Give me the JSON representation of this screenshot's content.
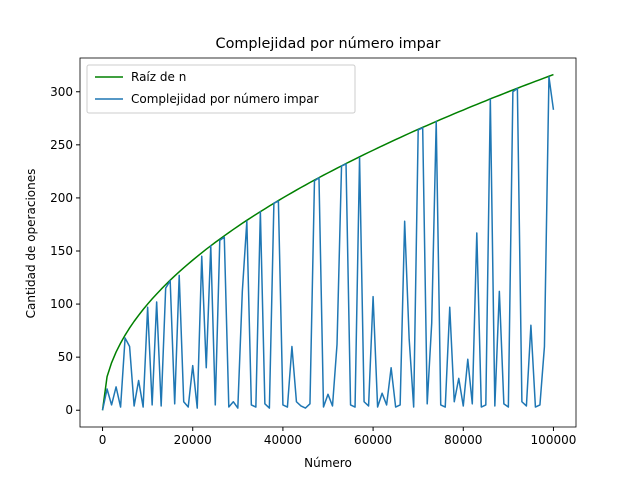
{
  "chart_data": {
    "type": "line",
    "title": "Complejidad por número impar",
    "x_label": "Número",
    "y_label": "Cantidad de operaciones",
    "x": [
      0,
      1000,
      2000,
      3000,
      4000,
      5000,
      6000,
      7000,
      8000,
      9000,
      10000,
      11000,
      12000,
      13000,
      14000,
      15000,
      16000,
      17000,
      18000,
      19000,
      20000,
      21000,
      22000,
      23000,
      24000,
      25000,
      26000,
      27000,
      28000,
      29000,
      30000,
      31000,
      32000,
      33000,
      34000,
      35000,
      36000,
      37000,
      38000,
      39000,
      40000,
      41000,
      42000,
      43000,
      44000,
      45000,
      46000,
      47000,
      48000,
      49000,
      50000,
      51000,
      52000,
      53000,
      54000,
      55000,
      56000,
      57000,
      58000,
      59000,
      60000,
      61000,
      62000,
      63000,
      64000,
      65000,
      66000,
      67000,
      68000,
      69000,
      70000,
      71000,
      72000,
      73000,
      74000,
      75000,
      76000,
      77000,
      78000,
      79000,
      80000,
      81000,
      82000,
      83000,
      84000,
      85000,
      86000,
      87000,
      88000,
      89000,
      90000,
      91000,
      92000,
      93000,
      94000,
      95000,
      96000,
      97000,
      98000,
      99000,
      100000
    ],
    "series": [
      {
        "name": "Raíz de n",
        "color": "#008000",
        "values": [
          0,
          31.6,
          44.7,
          54.8,
          63.2,
          70.7,
          77.5,
          83.7,
          89.4,
          94.9,
          100,
          104.9,
          109.5,
          114.0,
          118.3,
          122.5,
          126.5,
          130.4,
          134.2,
          137.8,
          141.4,
          144.9,
          148.3,
          151.7,
          154.9,
          158.1,
          161.2,
          164.3,
          167.3,
          170.3,
          173.2,
          176.1,
          178.9,
          181.7,
          184.4,
          187.1,
          189.7,
          192.4,
          194.9,
          197.5,
          200,
          202.5,
          204.9,
          207.4,
          209.8,
          212.1,
          214.5,
          216.8,
          219.1,
          221.4,
          223.6,
          225.8,
          228.0,
          230.2,
          232.4,
          234.5,
          236.6,
          238.7,
          240.8,
          242.9,
          244.9,
          247.0,
          249.0,
          251.0,
          253.0,
          255.0,
          256.9,
          258.8,
          260.8,
          262.7,
          264.6,
          266.5,
          268.3,
          270.2,
          272.0,
          273.9,
          275.7,
          277.5,
          279.3,
          281.1,
          282.8,
          284.6,
          286.4,
          288.1,
          289.8,
          291.5,
          293.3,
          295.0,
          296.6,
          298.3,
          300,
          301.7,
          303.3,
          305.0,
          306.6,
          308.2,
          309.8,
          311.4,
          313.0,
          314.6,
          316.2
        ]
      },
      {
        "name": "Complejidad por número impar",
        "color": "#1f77b4",
        "values": [
          0,
          20,
          5,
          22,
          3,
          68,
          60,
          4,
          28,
          3,
          97,
          5,
          102,
          4,
          115,
          122,
          6,
          127,
          8,
          3,
          42,
          2,
          145,
          40,
          155,
          5,
          160,
          163,
          3,
          8,
          2,
          112,
          178,
          5,
          3,
          187,
          6,
          2,
          195,
          197,
          5,
          3,
          60,
          8,
          4,
          2,
          6,
          216,
          219,
          3,
          15,
          4,
          62,
          230,
          232,
          5,
          3,
          238,
          8,
          4,
          107,
          3,
          16,
          5,
          40,
          3,
          5,
          178,
          67,
          3,
          264,
          266,
          6,
          82,
          272,
          5,
          3,
          97,
          8,
          30,
          4,
          48,
          6,
          167,
          3,
          5,
          293,
          4,
          112,
          6,
          3,
          300,
          303,
          8,
          4,
          80,
          3,
          5,
          60,
          314,
          283
        ]
      }
    ],
    "xlim": [
      -5000,
      105000
    ],
    "ylim": [
      -15.8,
      331.8
    ],
    "xticks": [
      0,
      20000,
      40000,
      60000,
      80000,
      100000
    ],
    "yticks": [
      0,
      50,
      100,
      150,
      200,
      250,
      300
    ],
    "legend": "upper left"
  }
}
